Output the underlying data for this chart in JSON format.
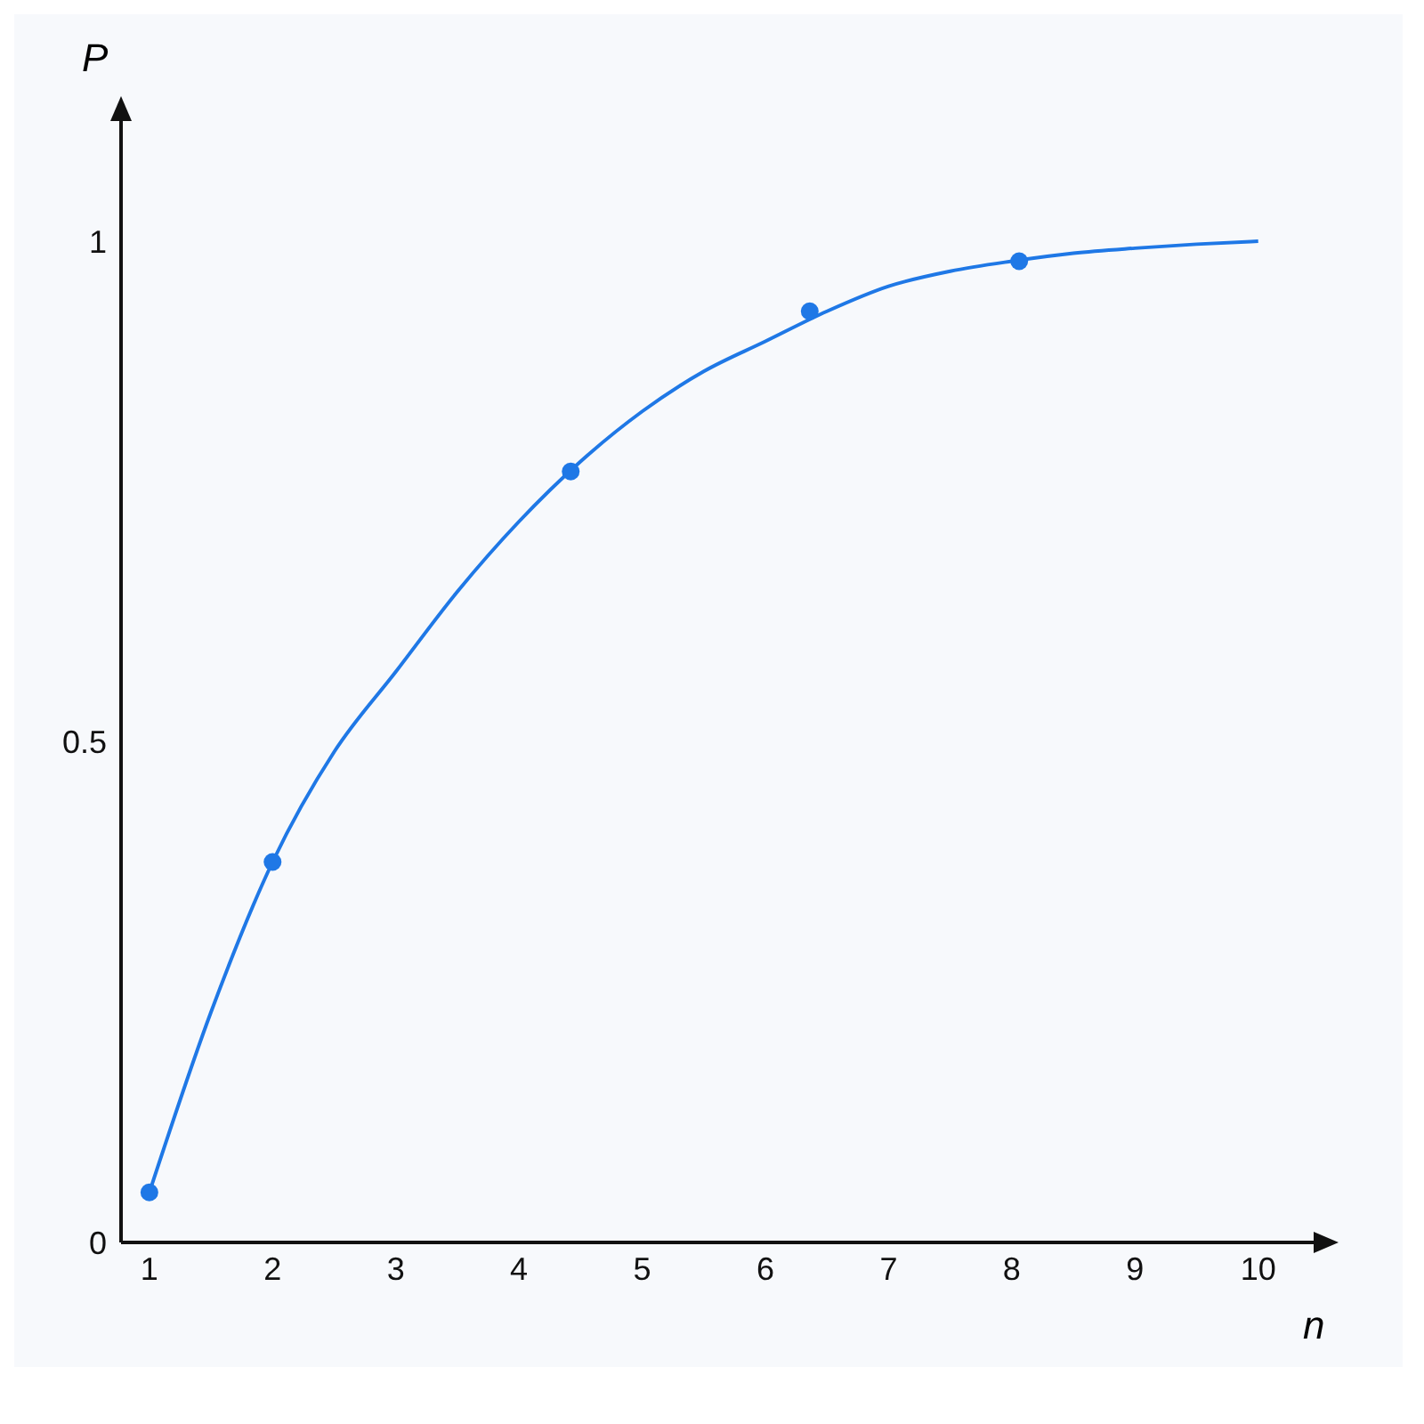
{
  "chart_data": {
    "type": "line",
    "xlabel": "n",
    "ylabel": "P",
    "xlim": [
      0.77,
      10.45
    ],
    "xticks": [
      1,
      2,
      3,
      4,
      5,
      6,
      7,
      8,
      9,
      10
    ],
    "ylim": [
      0,
      1.12
    ],
    "yticks": [
      0,
      0.5,
      1
    ],
    "grid": false,
    "series": [
      {
        "type": "line",
        "color": "#1f78e6",
        "marker": "none",
        "x": [
          1,
          1.5,
          2,
          2.5,
          3,
          3.5,
          4,
          4.5,
          5,
          5.5,
          6,
          6.5,
          7,
          7.5,
          8,
          8.5,
          9,
          9.5,
          10
        ],
        "values": [
          0.05,
          0.23,
          0.38,
          0.49,
          0.57,
          0.65,
          0.72,
          0.78,
          0.83,
          0.87,
          0.9,
          0.93,
          0.955,
          0.97,
          0.98,
          0.988,
          0.993,
          0.997,
          1.0
        ]
      },
      {
        "type": "scatter",
        "color": "#1f78e6",
        "marker": "circle",
        "x": [
          1,
          2,
          4.42,
          6.36,
          8.06
        ],
        "values": [
          0.05,
          0.38,
          0.77,
          0.93,
          0.98
        ]
      }
    ]
  }
}
